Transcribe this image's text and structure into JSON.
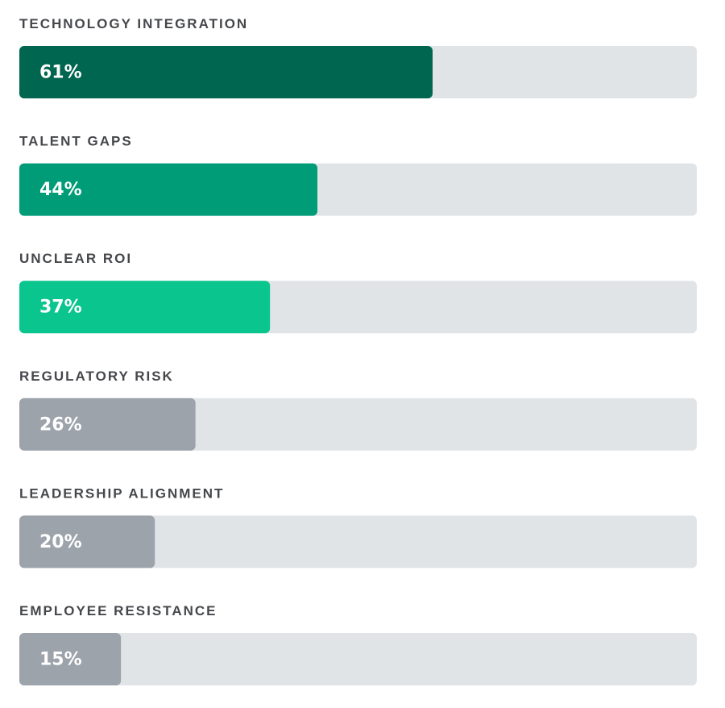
{
  "chart_data": {
    "type": "bar",
    "orientation": "horizontal",
    "categories": [
      "TECHNOLOGY INTEGRATION",
      "TALENT GAPS",
      "UNCLEAR ROI",
      "REGULATORY RISK",
      "LEADERSHIP ALIGNMENT",
      "EMPLOYEE RESISTANCE"
    ],
    "values": [
      61,
      44,
      37,
      26,
      20,
      15
    ],
    "value_labels": [
      "61%",
      "44%",
      "37%",
      "26%",
      "20%",
      "15%"
    ],
    "colors": [
      "#00664f",
      "#009b77",
      "#0bc58e",
      "#9ca3ab",
      "#9ca3ab",
      "#9ca3ab"
    ],
    "track_color": "#e1e4e7",
    "xlim": [
      0,
      100
    ]
  }
}
